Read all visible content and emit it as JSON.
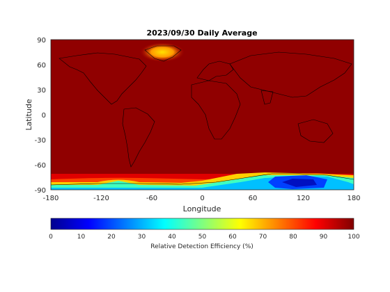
{
  "chart_data": {
    "type": "heatmap",
    "title": "2023/09/30 Daily Average",
    "xlabel": "Longitude",
    "ylabel": "Latitude",
    "xlim": [
      -180,
      180
    ],
    "ylim": [
      -90,
      90
    ],
    "x_ticks": [
      "-180",
      "-120",
      "-60",
      "0",
      "60",
      "120",
      "180"
    ],
    "y_ticks": [
      "90",
      "60",
      "30",
      "0",
      "-30",
      "-60",
      "-90"
    ],
    "colorbar": {
      "label": "Relative Detection Efficiency (%)",
      "colormap": "jet",
      "range": [
        0,
        100
      ],
      "ticks": [
        "0",
        "10",
        "20",
        "30",
        "40",
        "50",
        "60",
        "70",
        "80",
        "90",
        "100"
      ]
    },
    "background_value": 97,
    "notable_regions": [
      {
        "lon_range": [
          -75,
          -25
        ],
        "lat_range": [
          60,
          80
        ],
        "approx_value_range": [
          75,
          90
        ]
      },
      {
        "lon_range": [
          -180,
          180
        ],
        "lat_range": [
          -90,
          -75
        ],
        "approx_value_range": [
          20,
          95
        ]
      },
      {
        "lon_range": [
          80,
          150
        ],
        "lat_range": [
          -88,
          -75
        ],
        "approx_value_range": [
          5,
          25
        ]
      }
    ]
  }
}
